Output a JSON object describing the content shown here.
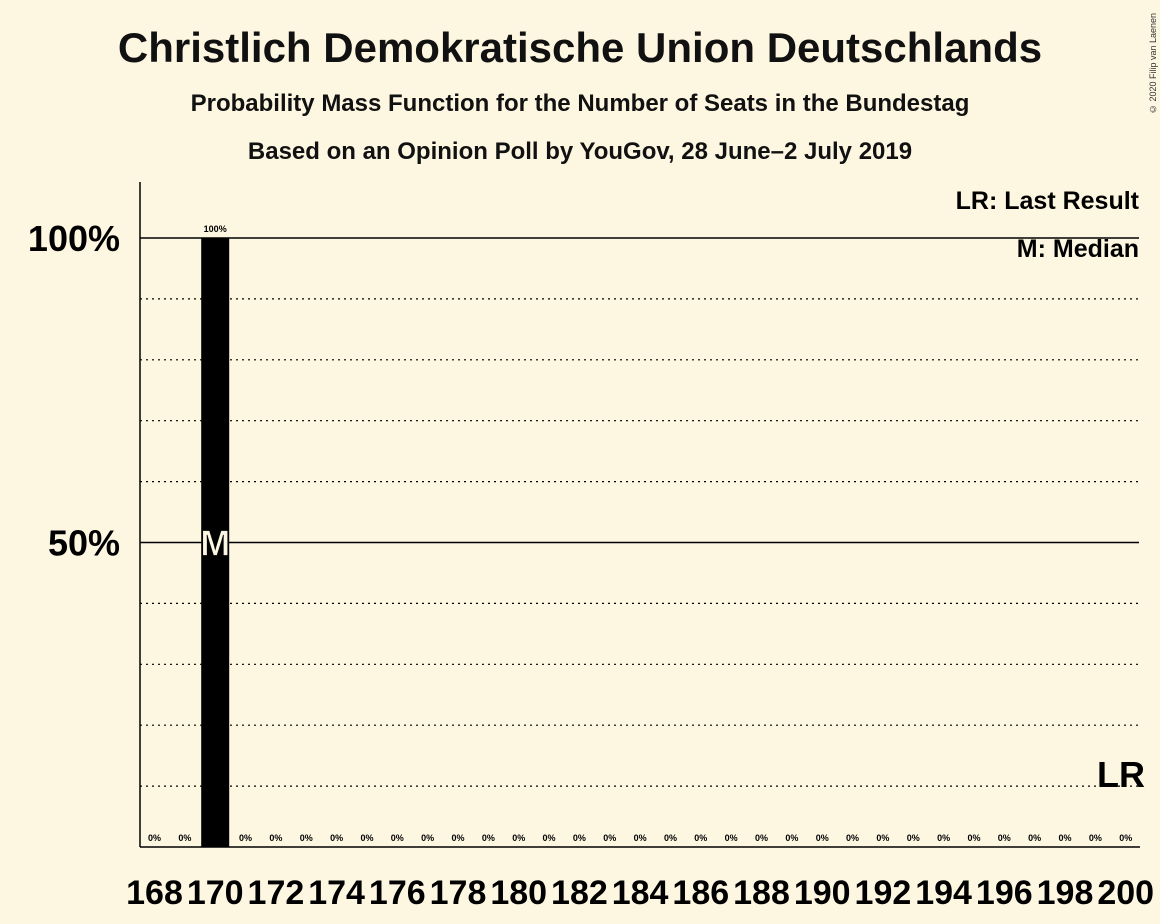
{
  "header": {
    "title": "Christlich Demokratische Union Deutschlands",
    "subtitle": "Probability Mass Function for the Number of Seats in the Bundestag",
    "source": "Based on an Opinion Poll by YouGov, 28 June–2 July 2019",
    "copyright": "© 2020 Filip van Laenen"
  },
  "legend": {
    "last_result": "LR: Last Result",
    "median": "M: Median"
  },
  "colors": {
    "background": "#fdf6e1",
    "bar": "#000000",
    "text": "#111111"
  },
  "chart_data": {
    "type": "bar",
    "title": "Christlich Demokratische Union Deutschlands",
    "ylim": [
      0,
      110
    ],
    "yticks": [
      {
        "value": 50,
        "label": "50%"
      },
      {
        "value": 100,
        "label": "100%"
      }
    ],
    "grid": "dotted every 10%",
    "x": [
      168,
      169,
      170,
      171,
      172,
      173,
      174,
      175,
      176,
      177,
      178,
      179,
      180,
      181,
      182,
      183,
      184,
      185,
      186,
      187,
      188,
      189,
      190,
      191,
      192,
      193,
      194,
      195,
      196,
      197,
      198,
      199,
      200
    ],
    "values": [
      0,
      0,
      100,
      0,
      0,
      0,
      0,
      0,
      0,
      0,
      0,
      0,
      0,
      0,
      0,
      0,
      0,
      0,
      0,
      0,
      0,
      0,
      0,
      0,
      0,
      0,
      0,
      0,
      0,
      0,
      0,
      0,
      0
    ],
    "value_labels": [
      "0%",
      "0%",
      "100%",
      "0%",
      "0%",
      "0%",
      "0%",
      "0%",
      "0%",
      "0%",
      "0%",
      "0%",
      "0%",
      "0%",
      "0%",
      "0%",
      "0%",
      "0%",
      "0%",
      "0%",
      "0%",
      "0%",
      "0%",
      "0%",
      "0%",
      "0%",
      "0%",
      "0%",
      "0%",
      "0%",
      "0%",
      "0%",
      "0%"
    ],
    "xtick_labels": [
      "168",
      "170",
      "172",
      "174",
      "176",
      "178",
      "180",
      "182",
      "184",
      "186",
      "188",
      "190",
      "192",
      "194",
      "196",
      "198",
      "200"
    ],
    "median": {
      "x": 170,
      "label": "M"
    },
    "last_result": {
      "x": 200,
      "label": "LR"
    }
  }
}
